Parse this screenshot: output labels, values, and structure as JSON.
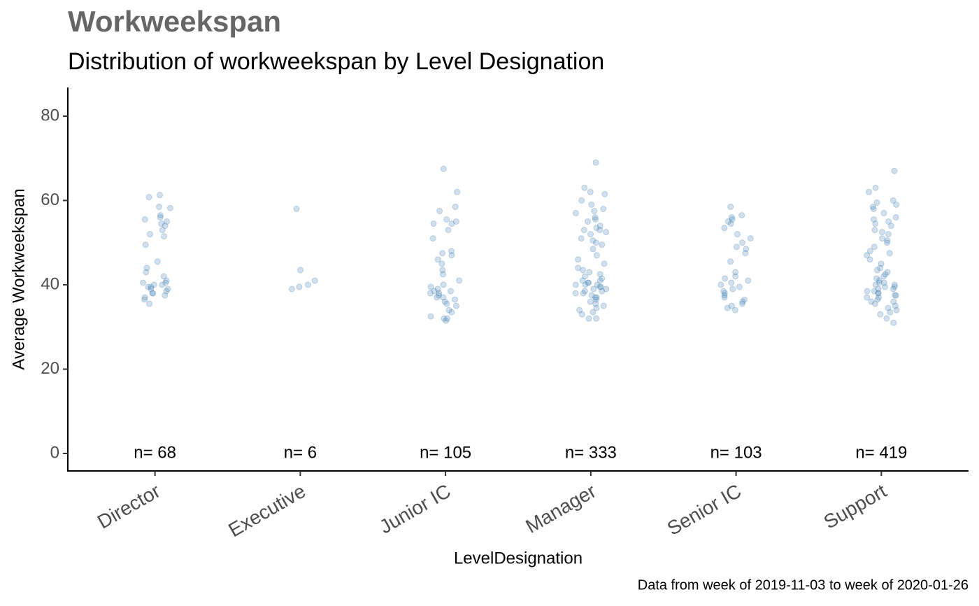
{
  "chart_data": {
    "type": "strip",
    "title": "Workweekspan",
    "subtitle": "Distribution of workweekspan by Level Designation",
    "x_label": "LevelDesignation",
    "y_label": "Average Workweekspan",
    "caption": "Data from week of 2019-11-03 to week of 2020-01-26",
    "categories": [
      "Director",
      "Executive",
      "Junior IC",
      "Manager",
      "Senior IC",
      "Support"
    ],
    "annotations": [
      "n= 68",
      "n= 6",
      "n= 105",
      "n= 333",
      "n= 103",
      "n= 419"
    ],
    "color": "#4682b4",
    "ylim": [
      -4.15,
      86.8
    ],
    "yticks": [
      0,
      20,
      40,
      60,
      80
    ],
    "values": [
      [
        61.3,
        60.8,
        58.5,
        58.2,
        56.5,
        56,
        55.5,
        55,
        54.5,
        54,
        53,
        52,
        51.5,
        49.5,
        45.5,
        44,
        43,
        42,
        41,
        40.5,
        40.5,
        40,
        40,
        39.5,
        39.5,
        39,
        39,
        38.5,
        38,
        38,
        37.5,
        37,
        36.5,
        35.5
      ],
      [
        58,
        43.5,
        41,
        39.5,
        40,
        39
      ],
      [
        67.5,
        62,
        58.5,
        57.5,
        55.5,
        55,
        54.5,
        54.5,
        53,
        51,
        48,
        47.5,
        47,
        46,
        45,
        43.5,
        42.5,
        41,
        40,
        39.5,
        39,
        38.5,
        38.5,
        38,
        38,
        37.5,
        37,
        37,
        36.5,
        36,
        35.5,
        35,
        34,
        33.5,
        32.5,
        32,
        32,
        31.5
      ],
      [
        69,
        63,
        62,
        61.5,
        60,
        59,
        58,
        57.5,
        57,
        56,
        55.5,
        55,
        54,
        53.5,
        53,
        53,
        52.5,
        52,
        51,
        50.5,
        50,
        49.5,
        48.5,
        47,
        46,
        45,
        44,
        43.5,
        43,
        42.5,
        42,
        41.5,
        41,
        41,
        40.5,
        40.5,
        40,
        40,
        40,
        39.5,
        39.5,
        39,
        39,
        38.5,
        38.5,
        38,
        38,
        37.5,
        37,
        37,
        36.5,
        36,
        35.5,
        35,
        34.5,
        34,
        33.5,
        33,
        32,
        32
      ],
      [
        58.5,
        56.5,
        56,
        55.5,
        55,
        54.5,
        53.5,
        52,
        51,
        50,
        49,
        48.5,
        47.5,
        45.5,
        43,
        42,
        41.5,
        41,
        40.5,
        40,
        39.5,
        39,
        38.5,
        38,
        37.5,
        37,
        36.5,
        36,
        35.5,
        35,
        34.5,
        34
      ],
      [
        67,
        63,
        62,
        60,
        59.5,
        59,
        58.5,
        58,
        57,
        56,
        55.5,
        55,
        54.5,
        54,
        53,
        52.5,
        52,
        51,
        50.5,
        50,
        49,
        48,
        47.5,
        47,
        46,
        45,
        44,
        43.5,
        43,
        42.5,
        42,
        41.5,
        41,
        40.5,
        40.5,
        40,
        40,
        39.5,
        39.5,
        39,
        39,
        38.5,
        38.5,
        38,
        38,
        37.5,
        37.5,
        37,
        37,
        36.5,
        36,
        36,
        35.5,
        35,
        34.5,
        34,
        33.5,
        33,
        32,
        31
      ]
    ]
  }
}
